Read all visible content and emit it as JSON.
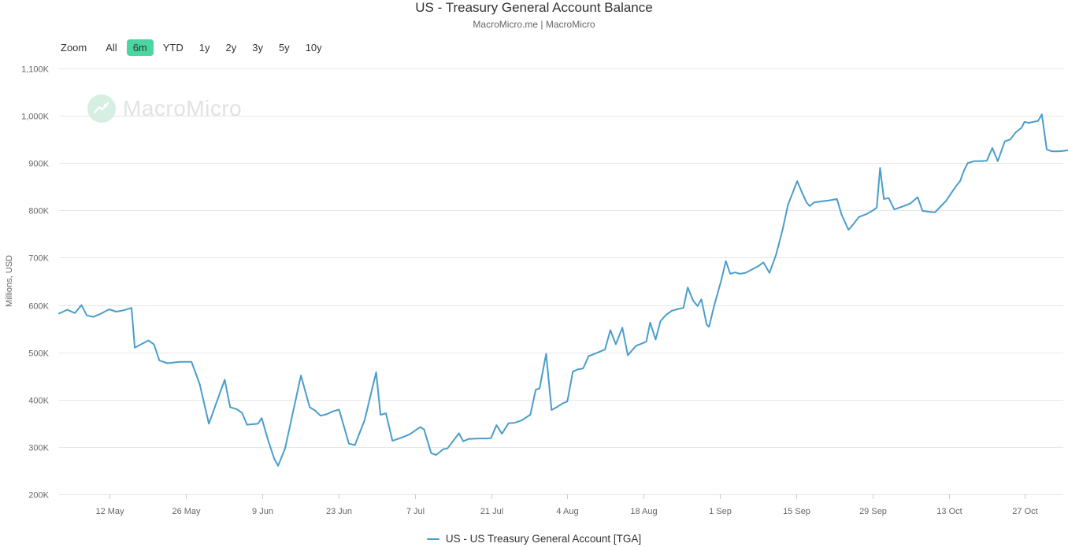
{
  "header": {
    "title": "US - Treasury General Account Balance",
    "subtitle": "MacroMicro.me | MacroMicro"
  },
  "toolbar": {
    "zoom_label": "Zoom",
    "buttons": [
      "All",
      "6m",
      "YTD",
      "1y",
      "2y",
      "3y",
      "5y",
      "10y"
    ],
    "active": "6m"
  },
  "watermark": {
    "text": "MacroMicro"
  },
  "axes": {
    "y_title": "Millions, USD"
  },
  "legend": {
    "label": "US - US Treasury General Account [TGA]"
  },
  "colors": {
    "line": "#4a9dcb",
    "grid": "#e6e6e6",
    "axis_tick": "#cccccc",
    "text_dark": "#333333",
    "text_muted": "#666666",
    "active_button_bg": "#4bd5a0",
    "watermark_circle": "#d5efe2",
    "watermark_glyph": "#ffffff",
    "watermark_text": "#e2e2e2"
  },
  "chart_data": {
    "type": "line",
    "title": "US - Treasury General Account Balance",
    "subtitle": "MacroMicro.me | MacroMicro",
    "ylabel": "Millions, USD",
    "ylim": [
      200,
      1100
    ],
    "grid": "horizontal",
    "legend_position": "bottom",
    "y_ticks": [
      {
        "v": 200,
        "label": "200K"
      },
      {
        "v": 300,
        "label": "300K"
      },
      {
        "v": 400,
        "label": "400K"
      },
      {
        "v": 500,
        "label": "500K"
      },
      {
        "v": 600,
        "label": "600K"
      },
      {
        "v": 700,
        "label": "700K"
      },
      {
        "v": 800,
        "label": "800K"
      },
      {
        "v": 900,
        "label": "900K"
      },
      {
        "v": 1000,
        "label": "1,000K"
      },
      {
        "v": 1100,
        "label": "1,100K"
      }
    ],
    "x_unit": "days (0 = 1 May)",
    "x_range": [
      1.7,
      186.9
    ],
    "x_ticks": [
      {
        "d": 11,
        "label": "12 May"
      },
      {
        "d": 25,
        "label": "26 May"
      },
      {
        "d": 39,
        "label": "9 Jun"
      },
      {
        "d": 53,
        "label": "23 Jun"
      },
      {
        "d": 67,
        "label": "7 Jul"
      },
      {
        "d": 81,
        "label": "21 Jul"
      },
      {
        "d": 95,
        "label": "4 Aug"
      },
      {
        "d": 109,
        "label": "18 Aug"
      },
      {
        "d": 123,
        "label": "1 Sep"
      },
      {
        "d": 137,
        "label": "15 Sep"
      },
      {
        "d": 151,
        "label": "29 Sep"
      },
      {
        "d": 165,
        "label": "13 Oct"
      },
      {
        "d": 179,
        "label": "27 Oct"
      }
    ],
    "series": [
      {
        "name": "US - US Treasury General Account [TGA]",
        "color": "#4a9dcb",
        "points": [
          [
            1.7,
            582
          ],
          [
            3.2,
            590
          ],
          [
            4.6,
            583
          ],
          [
            5.8,
            600
          ],
          [
            6.8,
            578
          ],
          [
            8,
            575
          ],
          [
            9.4,
            582
          ],
          [
            10.9,
            591
          ],
          [
            12.2,
            586
          ],
          [
            13.6,
            589
          ],
          [
            15,
            594
          ],
          [
            15.6,
            510
          ],
          [
            18.1,
            525
          ],
          [
            19.1,
            517
          ],
          [
            20.1,
            483
          ],
          [
            21.6,
            477
          ],
          [
            23.9,
            480
          ],
          [
            26,
            480
          ],
          [
            27.5,
            433
          ],
          [
            29.2,
            349
          ],
          [
            32.1,
            442
          ],
          [
            33.1,
            384
          ],
          [
            34.3,
            380
          ],
          [
            35.3,
            372
          ],
          [
            36.2,
            347
          ],
          [
            38.2,
            349
          ],
          [
            38.9,
            361
          ],
          [
            40.1,
            313
          ],
          [
            41.2,
            275
          ],
          [
            41.9,
            260
          ],
          [
            43.2,
            297
          ],
          [
            46.1,
            451
          ],
          [
            47.7,
            384
          ],
          [
            48.7,
            377
          ],
          [
            49.7,
            366
          ],
          [
            50.8,
            369
          ],
          [
            51.9,
            375
          ],
          [
            53.1,
            379
          ],
          [
            54.9,
            307
          ],
          [
            56,
            304
          ],
          [
            57.8,
            357
          ],
          [
            59.9,
            458
          ],
          [
            60.7,
            368
          ],
          [
            61.7,
            371
          ],
          [
            62.9,
            313
          ],
          [
            64.6,
            320
          ],
          [
            66.1,
            327
          ],
          [
            68,
            342
          ],
          [
            68.7,
            337
          ],
          [
            70,
            287
          ],
          [
            70.9,
            283
          ],
          [
            72.2,
            295
          ],
          [
            73,
            297
          ],
          [
            75.1,
            329
          ],
          [
            75.9,
            312
          ],
          [
            76.9,
            317
          ],
          [
            78.7,
            318
          ],
          [
            80.5,
            318
          ],
          [
            81,
            319
          ],
          [
            82,
            346
          ],
          [
            83,
            328
          ],
          [
            84.2,
            350
          ],
          [
            85.3,
            351
          ],
          [
            86.6,
            356
          ],
          [
            87.5,
            363
          ],
          [
            88.2,
            368
          ],
          [
            89.2,
            421
          ],
          [
            89.9,
            424
          ],
          [
            91.1,
            497
          ],
          [
            92.1,
            378
          ],
          [
            93.3,
            386
          ],
          [
            94.3,
            393
          ],
          [
            95,
            396
          ],
          [
            96,
            459
          ],
          [
            96.9,
            464
          ],
          [
            97.9,
            466
          ],
          [
            98.9,
            492
          ],
          [
            99.6,
            495
          ],
          [
            101.9,
            506
          ],
          [
            102.9,
            547
          ],
          [
            103.9,
            517
          ],
          [
            105.1,
            552
          ],
          [
            106.1,
            494
          ],
          [
            107.6,
            514
          ],
          [
            108.8,
            519
          ],
          [
            109.5,
            523
          ],
          [
            110.2,
            563
          ],
          [
            111.2,
            527
          ],
          [
            112.1,
            566
          ],
          [
            113.1,
            579
          ],
          [
            114.2,
            588
          ],
          [
            115.5,
            592
          ],
          [
            116.3,
            594
          ],
          [
            117.1,
            637
          ],
          [
            118.1,
            609
          ],
          [
            118.9,
            598
          ],
          [
            119.6,
            612
          ],
          [
            120.6,
            558
          ],
          [
            121,
            554
          ],
          [
            122,
            601
          ],
          [
            123.2,
            650
          ],
          [
            124.1,
            693
          ],
          [
            124.9,
            666
          ],
          [
            125.8,
            669
          ],
          [
            126.7,
            666
          ],
          [
            127.7,
            668
          ],
          [
            128.7,
            674
          ],
          [
            130,
            682
          ],
          [
            131,
            690
          ],
          [
            132.1,
            668
          ],
          [
            133.3,
            706
          ],
          [
            134.5,
            759
          ],
          [
            135.5,
            812
          ],
          [
            137.2,
            862
          ],
          [
            138.1,
            837
          ],
          [
            138.9,
            817
          ],
          [
            139.5,
            809
          ],
          [
            140.3,
            817
          ],
          [
            141.6,
            819
          ],
          [
            143,
            821
          ],
          [
            144.5,
            824
          ],
          [
            145.3,
            792
          ],
          [
            146.6,
            759
          ],
          [
            147.5,
            771
          ],
          [
            148.5,
            786
          ],
          [
            149.9,
            792
          ],
          [
            151.1,
            800
          ],
          [
            151.8,
            806
          ],
          [
            152.4,
            890
          ],
          [
            153.1,
            824
          ],
          [
            154,
            826
          ],
          [
            155,
            802
          ],
          [
            156,
            806
          ],
          [
            157.2,
            811
          ],
          [
            158,
            815
          ],
          [
            159.3,
            828
          ],
          [
            160.2,
            799
          ],
          [
            161.5,
            797
          ],
          [
            162.5,
            796
          ],
          [
            163.5,
            808
          ],
          [
            164.5,
            820
          ],
          [
            165.5,
            837
          ],
          [
            166.4,
            852
          ],
          [
            167.1,
            862
          ],
          [
            167.8,
            884
          ],
          [
            168.5,
            900
          ],
          [
            169.7,
            904
          ],
          [
            170.8,
            904
          ],
          [
            172,
            905
          ],
          [
            173,
            932
          ],
          [
            174,
            904
          ],
          [
            175.3,
            946
          ],
          [
            176.3,
            950
          ],
          [
            177.3,
            965
          ],
          [
            178.4,
            975
          ],
          [
            178.9,
            987
          ],
          [
            179.7,
            985
          ],
          [
            180.5,
            987
          ],
          [
            181.4,
            989
          ],
          [
            182.1,
            1003
          ],
          [
            183,
            929
          ],
          [
            183.9,
            925
          ],
          [
            185.3,
            925
          ],
          [
            186.9,
            927
          ]
        ]
      }
    ]
  }
}
